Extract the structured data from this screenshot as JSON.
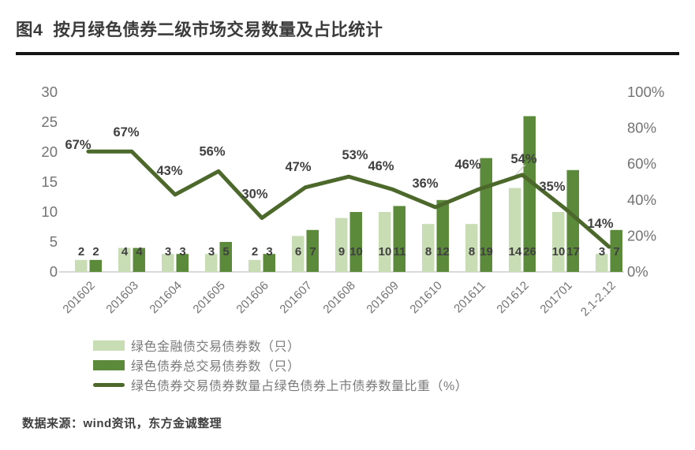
{
  "page": {
    "title": "图4  按月绿色债券二级市场交易数量及占比统计",
    "source": "数据来源：wind资讯，东方金诚整理"
  },
  "chart_data": {
    "type": "bar",
    "subtype": "bar-line-combo",
    "title": "按月绿色债券二级市场交易数量及占比统计",
    "categories": [
      "201602",
      "201603",
      "201604",
      "201605",
      "201606",
      "201607",
      "201608",
      "201609",
      "201610",
      "201611",
      "201612",
      "201701",
      "2.1-2.12"
    ],
    "series": [
      {
        "name": "绿色金融债交易债券数（只）",
        "chart": "bar",
        "axis": "left",
        "color": "#c9ddb4",
        "values": [
          2,
          4,
          3,
          3,
          2,
          6,
          9,
          10,
          8,
          8,
          14,
          10,
          3
        ]
      },
      {
        "name": "绿色债券总交易债券数（只）",
        "chart": "bar",
        "axis": "left",
        "color": "#5b8a3a",
        "values": [
          2,
          4,
          3,
          5,
          3,
          7,
          10,
          11,
          12,
          19,
          26,
          17,
          7
        ]
      },
      {
        "name": "绿色债券交易债券数量占绿色债券上市债券数量比重（%）",
        "chart": "line",
        "axis": "right",
        "color": "#4c682b",
        "values": [
          67,
          67,
          43,
          56,
          30,
          47,
          53,
          46,
          36,
          46,
          54,
          35,
          14
        ],
        "labels": [
          "67%",
          "67%",
          "43%",
          "56%",
          "30%",
          "47%",
          "53%",
          "46%",
          "36%",
          "46%",
          "54%",
          "35%",
          "14%"
        ]
      }
    ],
    "left_axis": {
      "min": 0,
      "max": 30,
      "ticks": [
        0,
        5,
        10,
        15,
        20,
        25,
        30
      ]
    },
    "right_axis": {
      "min": 0,
      "max": 100,
      "ticks": [
        "0%",
        "20%",
        "40%",
        "60%",
        "80%",
        "100%"
      ]
    },
    "legend_position": "bottom-left",
    "grid": false,
    "colors": {
      "axis_text": "#737373",
      "data_label": "#404040",
      "axis_line": "#d9d9d9",
      "legend_text": "#7a7a7a"
    }
  }
}
